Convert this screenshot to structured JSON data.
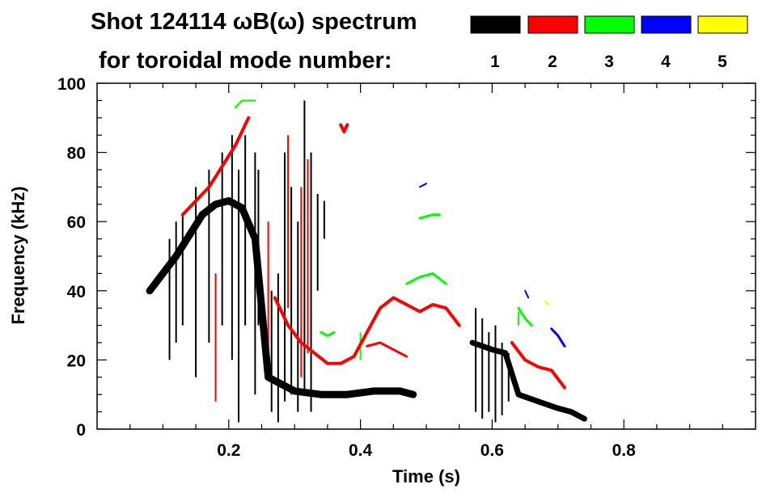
{
  "chart_data": {
    "type": "spectrogram",
    "title_line1": "Shot 124114 ωB(ω) spectrum",
    "title_line2": "for toroidal mode number:",
    "xlabel": "Time (s)",
    "ylabel": "Frequency (kHz)",
    "xlim": [
      0.0,
      1.0
    ],
    "ylim": [
      0,
      100
    ],
    "xticks": [
      {
        "value": 0.2,
        "label": "0.2"
      },
      {
        "value": 0.4,
        "label": "0.4"
      },
      {
        "value": 0.6,
        "label": "0.6"
      },
      {
        "value": 0.8,
        "label": "0.8"
      }
    ],
    "yticks": [
      {
        "value": 0,
        "label": "0"
      },
      {
        "value": 20,
        "label": "20"
      },
      {
        "value": 40,
        "label": "40"
      },
      {
        "value": 60,
        "label": "60"
      },
      {
        "value": 80,
        "label": "80"
      },
      {
        "value": 100,
        "label": "100"
      }
    ],
    "legend": [
      {
        "n": "1",
        "color": "#000000"
      },
      {
        "n": "2",
        "color": "#ff0000"
      },
      {
        "n": "3",
        "color": "#00ff00"
      },
      {
        "n": "4",
        "color": "#0000ff"
      },
      {
        "n": "5",
        "color": "#ffff00"
      }
    ],
    "series": [
      {
        "name": "n=1",
        "color": "#000000",
        "width": 9,
        "points": [
          [
            0.08,
            40
          ],
          [
            0.1,
            45
          ],
          [
            0.12,
            50
          ],
          [
            0.14,
            56
          ],
          [
            0.16,
            62
          ],
          [
            0.18,
            65
          ],
          [
            0.2,
            66
          ],
          [
            0.22,
            64
          ],
          [
            0.24,
            55
          ],
          [
            0.26,
            15
          ],
          [
            0.28,
            13
          ],
          [
            0.3,
            11
          ],
          [
            0.34,
            10
          ],
          [
            0.38,
            10
          ],
          [
            0.42,
            11
          ],
          [
            0.46,
            11
          ],
          [
            0.48,
            10
          ]
        ]
      },
      {
        "name": "n=1",
        "color": "#000000",
        "width": 7,
        "points": [
          [
            0.57,
            25
          ],
          [
            0.6,
            23
          ],
          [
            0.62,
            22
          ],
          [
            0.64,
            10
          ],
          [
            0.67,
            8
          ],
          [
            0.7,
            6
          ],
          [
            0.72,
            5
          ],
          [
            0.74,
            3
          ]
        ]
      },
      {
        "name": "n=2",
        "color": "#ff0000",
        "width": 4,
        "points": [
          [
            0.13,
            62
          ],
          [
            0.15,
            66
          ],
          [
            0.17,
            70
          ],
          [
            0.19,
            76
          ],
          [
            0.21,
            82
          ],
          [
            0.22,
            86
          ],
          [
            0.23,
            90
          ]
        ]
      },
      {
        "name": "n=2",
        "color": "#ff0000",
        "width": 4,
        "points": [
          [
            0.27,
            38
          ],
          [
            0.29,
            30
          ],
          [
            0.31,
            25
          ],
          [
            0.33,
            22
          ],
          [
            0.35,
            19
          ],
          [
            0.37,
            19
          ],
          [
            0.39,
            21
          ],
          [
            0.41,
            28
          ],
          [
            0.43,
            35
          ],
          [
            0.45,
            38
          ],
          [
            0.47,
            36
          ],
          [
            0.49,
            34
          ],
          [
            0.51,
            36
          ],
          [
            0.53,
            35
          ],
          [
            0.55,
            30
          ]
        ]
      },
      {
        "name": "n=2",
        "color": "#ff0000",
        "width": 3,
        "points": [
          [
            0.41,
            24
          ],
          [
            0.43,
            25
          ],
          [
            0.45,
            23
          ],
          [
            0.47,
            21
          ]
        ]
      },
      {
        "name": "n=2",
        "color": "#ff0000",
        "width": 4,
        "points": [
          [
            0.63,
            25
          ],
          [
            0.65,
            20
          ],
          [
            0.67,
            18
          ],
          [
            0.69,
            17
          ],
          [
            0.71,
            12
          ]
        ]
      },
      {
        "name": "n=2",
        "color": "#ff0000",
        "width": 4,
        "points": [
          [
            0.37,
            88
          ],
          [
            0.375,
            86
          ],
          [
            0.38,
            88
          ]
        ]
      },
      {
        "name": "n=3",
        "color": "#00ff00",
        "width": 3,
        "points": [
          [
            0.47,
            42
          ],
          [
            0.49,
            44
          ],
          [
            0.51,
            45
          ],
          [
            0.53,
            42
          ]
        ]
      },
      {
        "name": "n=3",
        "color": "#00ff00",
        "width": 3,
        "points": [
          [
            0.49,
            61
          ],
          [
            0.51,
            62
          ],
          [
            0.52,
            62
          ]
        ]
      },
      {
        "name": "n=3",
        "color": "#00ff00",
        "width": 3,
        "points": [
          [
            0.64,
            35
          ],
          [
            0.65,
            32
          ],
          [
            0.66,
            30
          ]
        ]
      },
      {
        "name": "n=3",
        "color": "#00ff00",
        "width": 3,
        "points": [
          [
            0.34,
            28
          ],
          [
            0.35,
            27
          ],
          [
            0.36,
            28
          ]
        ]
      },
      {
        "name": "n=3",
        "color": "#00ff00",
        "width": 2,
        "points": [
          [
            0.21,
            93
          ],
          [
            0.22,
            95
          ],
          [
            0.24,
            95
          ]
        ]
      },
      {
        "name": "n=4",
        "color": "#0000ff",
        "width": 2,
        "points": [
          [
            0.49,
            70
          ],
          [
            0.5,
            71
          ]
        ]
      },
      {
        "name": "n=4",
        "color": "#0000ff",
        "width": 3,
        "points": [
          [
            0.69,
            29
          ],
          [
            0.7,
            27
          ],
          [
            0.71,
            24
          ]
        ]
      },
      {
        "name": "n=4",
        "color": "#0000ff",
        "width": 2,
        "points": [
          [
            0.65,
            40
          ],
          [
            0.655,
            38
          ]
        ]
      },
      {
        "name": "n=5",
        "color": "#ffff00",
        "width": 2,
        "points": [
          [
            0.68,
            37
          ],
          [
            0.685,
            36
          ]
        ]
      }
    ],
    "spikes": [
      {
        "color": "#000000",
        "ranges": [
          [
            0.11,
            20,
            55
          ],
          [
            0.12,
            25,
            60
          ],
          [
            0.13,
            30,
            62
          ],
          [
            0.15,
            15,
            70
          ],
          [
            0.17,
            25,
            75
          ],
          [
            0.19,
            30,
            80
          ],
          [
            0.205,
            20,
            85
          ],
          [
            0.215,
            2,
            75
          ],
          [
            0.225,
            30,
            85
          ],
          [
            0.24,
            10,
            80
          ],
          [
            0.245,
            30,
            75
          ],
          [
            0.265,
            5,
            40
          ],
          [
            0.275,
            2,
            45
          ],
          [
            0.285,
            8,
            80
          ],
          [
            0.295,
            10,
            70
          ],
          [
            0.305,
            5,
            60
          ],
          [
            0.315,
            10,
            95
          ],
          [
            0.325,
            5,
            80
          ],
          [
            0.335,
            40,
            68
          ],
          [
            0.345,
            55,
            66
          ],
          [
            0.575,
            5,
            35
          ],
          [
            0.585,
            3,
            32
          ],
          [
            0.595,
            5,
            28
          ],
          [
            0.605,
            2,
            30
          ],
          [
            0.615,
            4,
            25
          ],
          [
            0.625,
            8,
            22
          ]
        ]
      },
      {
        "color": "#ff0000",
        "ranges": [
          [
            0.18,
            8,
            45
          ],
          [
            0.26,
            20,
            60
          ],
          [
            0.29,
            35,
            85
          ],
          [
            0.31,
            15,
            70
          ],
          [
            0.32,
            22,
            78
          ]
        ]
      },
      {
        "color": "#00ff00",
        "ranges": [
          [
            0.4,
            20,
            28
          ],
          [
            0.64,
            30,
            34
          ]
        ]
      }
    ]
  }
}
